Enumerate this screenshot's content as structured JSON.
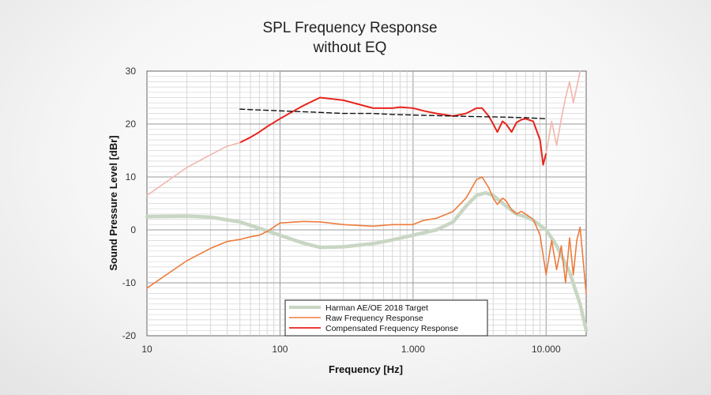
{
  "chart_data": {
    "type": "line",
    "title": [
      "SPL Frequency Response",
      "without EQ"
    ],
    "xlabel": "Frequency [Hz]",
    "ylabel": "Sound Pressure Level [dBr]",
    "xscale": "log",
    "xlim": [
      10,
      20000
    ],
    "ylim": [
      -20,
      30
    ],
    "xticks": [
      {
        "value": 10,
        "label": "10"
      },
      {
        "value": 100,
        "label": "100"
      },
      {
        "value": 1000,
        "label": "1.000"
      },
      {
        "value": 10000,
        "label": "10.000"
      }
    ],
    "yticks": [
      {
        "value": 30,
        "label": "30"
      },
      {
        "value": 20,
        "label": "20"
      },
      {
        "value": 10,
        "label": "10"
      },
      {
        "value": 0,
        "label": "0"
      },
      {
        "value": -10,
        "label": "-10"
      },
      {
        "value": -20,
        "label": "-20"
      }
    ],
    "grid": true,
    "legend_position": "bottom-center",
    "legend": [
      {
        "label": "Harman AE/OE 2018 Target",
        "color": "#c8d6c3"
      },
      {
        "label": "Raw Frequency Response",
        "color": "#ee7b3c"
      },
      {
        "label": "Compensated Frequency Response",
        "color": "#e8231d"
      }
    ],
    "series": [
      {
        "name": "Harman AE/OE 2018 Target",
        "color": "#c8d6c3",
        "x": [
          10,
          20,
          30,
          50,
          70,
          100,
          150,
          200,
          300,
          500,
          700,
          1000,
          1500,
          2000,
          2500,
          3000,
          3500,
          4000,
          5000,
          6000,
          7000,
          8000,
          10000,
          12000,
          15000,
          18000,
          20000
        ],
        "y": [
          2.5,
          2.6,
          2.4,
          1.5,
          0.3,
          -1.0,
          -2.5,
          -3.3,
          -3.2,
          -2.6,
          -1.9,
          -1.0,
          0.0,
          1.5,
          4.5,
          6.5,
          7.0,
          6.5,
          4.5,
          3.0,
          2.5,
          1.8,
          0.0,
          -3.0,
          -8.0,
          -14.0,
          -19.0
        ]
      },
      {
        "name": "Raw Frequency Response",
        "color": "#ee7b3c",
        "x": [
          10,
          20,
          30,
          40,
          50,
          60,
          70,
          80,
          100,
          150,
          200,
          300,
          500,
          700,
          1000,
          1200,
          1500,
          2000,
          2500,
          3000,
          3300,
          3700,
          4000,
          4300,
          4700,
          5000,
          5500,
          6000,
          6500,
          7000,
          8000,
          9000,
          10000,
          11000,
          12000,
          13000,
          14000,
          15000,
          16000,
          17000,
          18000,
          20000
        ],
        "y": [
          -11.0,
          -5.8,
          -3.5,
          -2.2,
          -1.8,
          -1.3,
          -1.0,
          -0.3,
          1.3,
          1.6,
          1.5,
          1.0,
          0.7,
          1.0,
          1.0,
          1.8,
          2.2,
          3.5,
          6.0,
          9.5,
          10.0,
          8.0,
          6.0,
          4.8,
          6.0,
          5.5,
          3.8,
          3.0,
          3.5,
          3.0,
          2.0,
          -1.0,
          -8.5,
          -2.0,
          -7.5,
          -3.0,
          -10.0,
          -1.5,
          -8.5,
          -2.0,
          0.5,
          -12.0
        ]
      },
      {
        "name": "Compensated Frequency Response",
        "color": "#e8231d",
        "x": [
          50,
          60,
          70,
          80,
          100,
          150,
          200,
          300,
          500,
          700,
          800,
          1000,
          1200,
          1500,
          2000,
          2500,
          3000,
          3300,
          3700,
          4000,
          4300,
          4700,
          5000,
          5500,
          6000,
          6500,
          7000,
          8000,
          9000,
          9500,
          10000
        ],
        "y": [
          16.5,
          17.5,
          18.5,
          19.5,
          21.0,
          23.5,
          25.0,
          24.5,
          23.0,
          23.0,
          23.2,
          23.0,
          22.5,
          22.0,
          21.5,
          22.0,
          23.0,
          23.0,
          21.5,
          20.0,
          18.5,
          20.5,
          20.0,
          18.5,
          20.3,
          20.8,
          21.0,
          20.5,
          17.0,
          12.3,
          14.5
        ]
      },
      {
        "name": "Dashed target reference",
        "color": "#111111",
        "dashed": true,
        "x": [
          50,
          100,
          200,
          300,
          500,
          700,
          1000,
          2000,
          3000,
          5000,
          7000,
          10000
        ],
        "y": [
          22.8,
          22.5,
          22.2,
          22.0,
          22.0,
          21.8,
          21.7,
          21.5,
          21.4,
          21.3,
          21.2,
          21.0
        ]
      },
      {
        "name": "Compensated extension (faded)",
        "color": "#f2b6ac",
        "x": [
          10,
          20,
          30,
          40,
          50
        ],
        "y": [
          6.5,
          11.8,
          14.2,
          15.8,
          16.5
        ]
      },
      {
        "name": "Compensated extension high (faded)",
        "color": "#f2b6ac",
        "x": [
          10000,
          11000,
          12000,
          13000,
          14000,
          15000,
          16000,
          17000,
          18000
        ],
        "y": [
          14.5,
          20.5,
          16.0,
          21.0,
          25.0,
          28.0,
          24.0,
          27.0,
          30.0
        ]
      }
    ]
  }
}
